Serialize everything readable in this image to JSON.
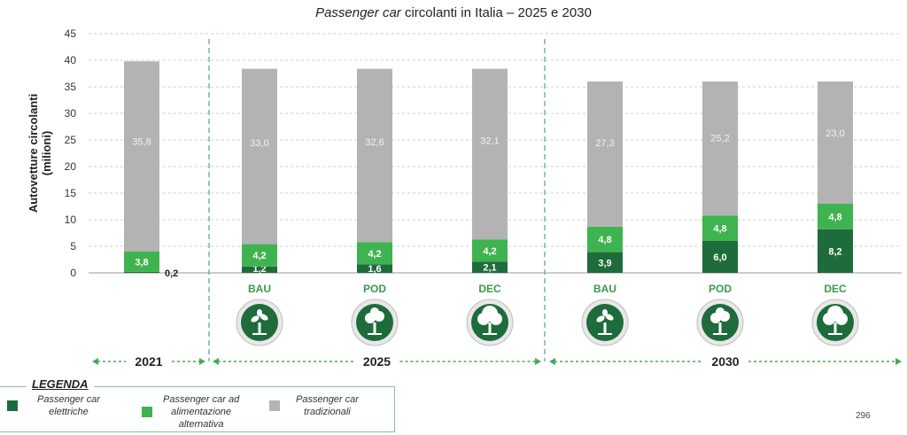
{
  "title_italic": "Passenger car",
  "title_rest": " circolanti in Italia – 2025 e 2030",
  "page_number": "296",
  "colors": {
    "elettriche": "#1e6b3c",
    "alternativa": "#3fb34f",
    "tradizionali": "#b3b3b3"
  },
  "legend": {
    "title": "LEGENDA",
    "items": [
      {
        "key": "elettriche",
        "line1": "Passenger car",
        "line2": "elettriche",
        "line3": ""
      },
      {
        "key": "alternativa",
        "line1": "Passenger car ad",
        "line2": "alimentazione",
        "line3": "alternativa"
      },
      {
        "key": "tradizionali",
        "line1": "Passenger car",
        "line2": "tradizionali",
        "line3": ""
      }
    ]
  },
  "chart_data": {
    "type": "bar",
    "stacked": true,
    "title": "Passenger car circolanti in Italia – 2025 e 2030",
    "ylabel_line1": "Autovetture circolanti",
    "ylabel_line2": "(milioni)",
    "ylim": [
      0,
      45
    ],
    "yticks": [
      0,
      5,
      10,
      15,
      20,
      25,
      30,
      35,
      40,
      45
    ],
    "grid": true,
    "categories": [
      "2021",
      "BAU",
      "POD",
      "DEC",
      "BAU",
      "POD",
      "DEC"
    ],
    "groups": [
      {
        "label": "2021",
        "categories": [
          0
        ]
      },
      {
        "label": "2025",
        "categories": [
          1,
          2,
          3
        ]
      },
      {
        "label": "2030",
        "categories": [
          4,
          5,
          6
        ]
      }
    ],
    "series": [
      {
        "key": "elettriche",
        "values": [
          0.2,
          1.2,
          1.6,
          2.1,
          3.9,
          6.0,
          8.2
        ],
        "labels": [
          "0,2",
          "1,2",
          "1,6",
          "2,1",
          "3,9",
          "6,0",
          "8,2"
        ]
      },
      {
        "key": "alternativa",
        "values": [
          3.8,
          4.2,
          4.2,
          4.2,
          4.8,
          4.8,
          4.8
        ],
        "labels": [
          "3,8",
          "4,2",
          "4,2",
          "4,2",
          "4,8",
          "4,8",
          "4,8"
        ]
      },
      {
        "key": "tradizionali",
        "values": [
          35.8,
          33.0,
          32.6,
          32.1,
          27.3,
          25.2,
          23.0
        ],
        "labels": [
          "35,8",
          "33,0",
          "32,6",
          "32,1",
          "27,3",
          "25,2",
          "23,0"
        ]
      }
    ],
    "scenario_icons": [
      "tree-sapling-icon",
      "tree-medium-icon",
      "tree-full-icon",
      "tree-sapling-icon",
      "tree-medium-icon",
      "tree-full-icon"
    ]
  }
}
